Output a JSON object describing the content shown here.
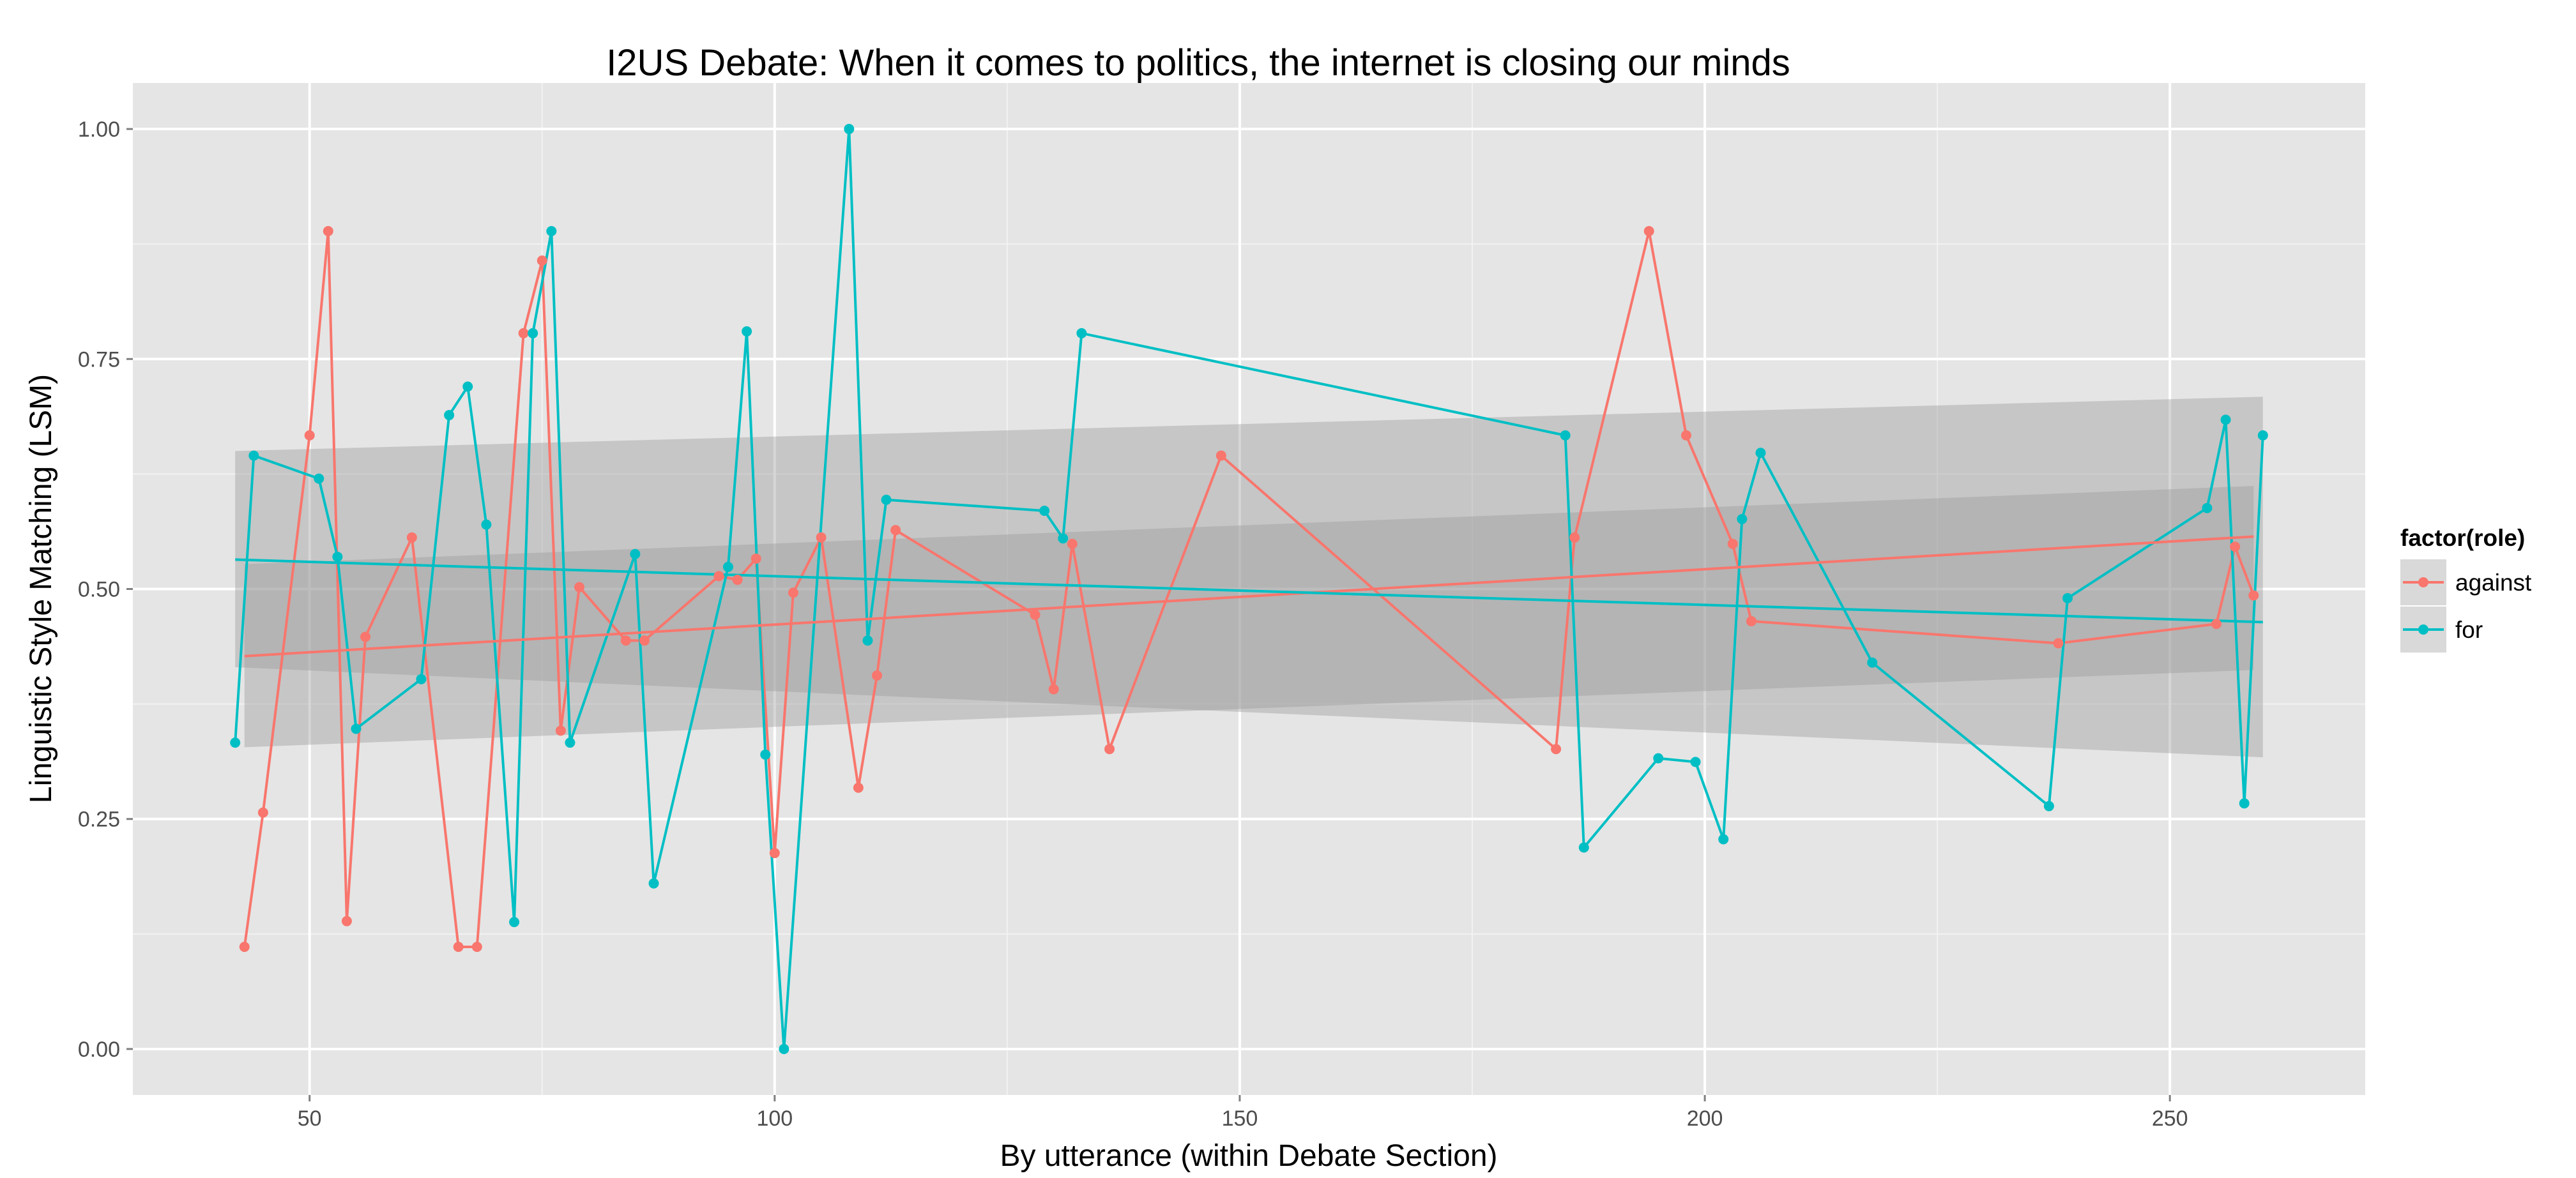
{
  "chart_data": {
    "type": "line",
    "title": "I2US Debate: When it comes to politics, the internet is closing our minds",
    "xlabel": "By utterance (within Debate Section)",
    "ylabel": "Linguistic Style Matching (LSM)",
    "xlim": [
      31,
      271
    ],
    "ylim": [
      -0.05,
      1.05
    ],
    "x_ticks": [
      50,
      100,
      150,
      200,
      250
    ],
    "y_ticks": [
      0.0,
      0.25,
      0.5,
      0.75,
      1.0
    ],
    "x_tick_labels": [
      "50",
      "100",
      "150",
      "200",
      "250"
    ],
    "y_tick_labels": [
      "0.00",
      "0.25",
      "0.50",
      "0.75",
      "1.00"
    ],
    "grid": true,
    "background": "#e5e5e5",
    "legend": {
      "title": "factor(role)",
      "position": "right",
      "entries": [
        "against",
        "for"
      ]
    },
    "series": [
      {
        "name": "against",
        "color": "#f8766d",
        "x": [
          43,
          45,
          50,
          52,
          54,
          56,
          61,
          66,
          68,
          73,
          75,
          77,
          79,
          84,
          86,
          94,
          96,
          98,
          100,
          102,
          105,
          109,
          111,
          113,
          128,
          130,
          132,
          136,
          148,
          184,
          186,
          194,
          198,
          203,
          205,
          238,
          255,
          257,
          259
        ],
        "y": [
          0.111,
          0.257,
          0.667,
          0.889,
          0.139,
          0.448,
          0.556,
          0.111,
          0.111,
          0.778,
          0.857,
          0.346,
          0.502,
          0.444,
          0.444,
          0.514,
          0.51,
          0.533,
          0.213,
          0.496,
          0.556,
          0.284,
          0.406,
          0.564,
          0.472,
          0.391,
          0.549,
          0.326,
          0.645,
          0.326,
          0.556,
          0.889,
          0.667,
          0.549,
          0.465,
          0.441,
          0.462,
          0.546,
          0.493
        ],
        "trend": {
          "x": [
            43,
            259
          ],
          "y": [
            0.427,
            0.557
          ],
          "ci_lower": [
            0.328,
            0.412
          ],
          "ci_upper": [
            0.527,
            0.612
          ]
        }
      },
      {
        "name": "for",
        "color": "#00bfc4",
        "x": [
          42,
          44,
          51,
          53,
          55,
          62,
          65,
          67,
          69,
          72,
          74,
          76,
          78,
          85,
          87,
          95,
          97,
          99,
          101,
          108,
          110,
          112,
          129,
          131,
          133,
          185,
          187,
          195,
          199,
          202,
          204,
          206,
          218,
          237,
          239,
          254,
          256,
          258,
          260
        ],
        "y": [
          0.333,
          0.645,
          0.62,
          0.535,
          0.348,
          0.402,
          0.689,
          0.72,
          0.57,
          0.138,
          0.778,
          0.889,
          0.333,
          0.538,
          0.18,
          0.524,
          0.78,
          0.32,
          0.0,
          1.0,
          0.444,
          0.597,
          0.585,
          0.555,
          0.778,
          0.667,
          0.219,
          0.316,
          0.312,
          0.228,
          0.576,
          0.648,
          0.42,
          0.264,
          0.49,
          0.588,
          0.684,
          0.267,
          0.667
        ],
        "trend": {
          "x": [
            42,
            260
          ],
          "y": [
            0.532,
            0.464
          ],
          "ci_lower": [
            0.415,
            0.317
          ],
          "ci_upper": [
            0.65,
            0.709
          ]
        }
      }
    ]
  }
}
